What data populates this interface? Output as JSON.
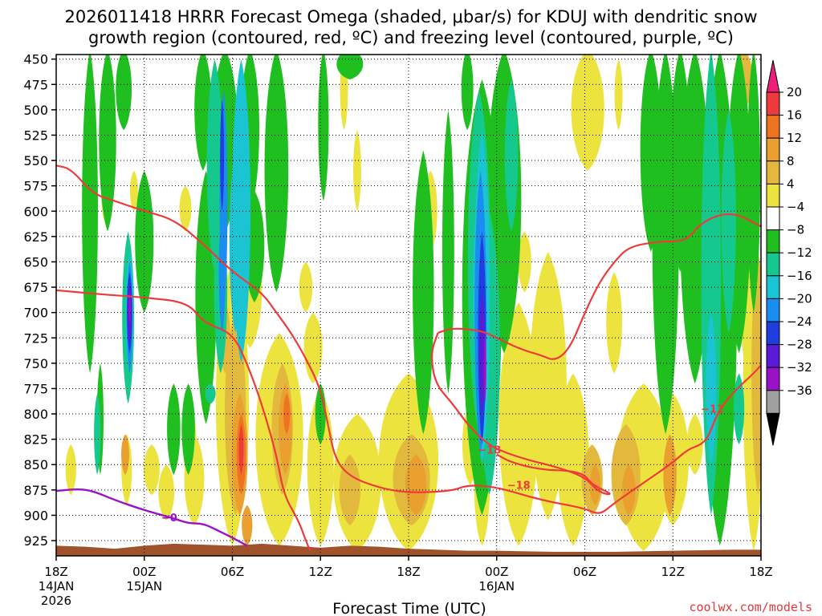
{
  "chart_data": {
    "type": "time-height contour",
    "title_line1": "2026011418 HRRR Forecast Omega (shaded, μbar/s) for KDUJ with dendritic snow",
    "title_line2": "growth region (contoured, red, ºC) and freezing level (contoured, purple, ºC)",
    "xlabel": "Forecast Time (UTC)",
    "credit": "coolwx.com/models",
    "y_levels": [
      "450",
      "475",
      "500",
      "525",
      "550",
      "575",
      "600",
      "625",
      "650",
      "675",
      "700",
      "725",
      "750",
      "775",
      "800",
      "825",
      "850",
      "875",
      "900",
      "925"
    ],
    "ylim_hpa": [
      450,
      940
    ],
    "xlim_hours": [
      0,
      48
    ],
    "x_ticks": [
      {
        "hour": 0,
        "label": "18Z",
        "sub1": "14JAN",
        "sub2": "2026"
      },
      {
        "hour": 6,
        "label": "00Z",
        "sub1": "15JAN",
        "sub2": ""
      },
      {
        "hour": 12,
        "label": "06Z",
        "sub1": "",
        "sub2": ""
      },
      {
        "hour": 18,
        "label": "12Z",
        "sub1": "",
        "sub2": ""
      },
      {
        "hour": 24,
        "label": "18Z",
        "sub1": "",
        "sub2": ""
      },
      {
        "hour": 30,
        "label": "00Z",
        "sub1": "16JAN",
        "sub2": ""
      },
      {
        "hour": 36,
        "label": "06Z",
        "sub1": "",
        "sub2": ""
      },
      {
        "hour": 42,
        "label": "12Z",
        "sub1": "",
        "sub2": ""
      },
      {
        "hour": 48,
        "label": "18Z",
        "sub1": "",
        "sub2": ""
      }
    ],
    "colorbar": {
      "labels": [
        "20",
        "16",
        "12",
        "8",
        "4",
        "−4",
        "−8",
        "−12",
        "−16",
        "−20",
        "−24",
        "−28",
        "−32",
        "−36"
      ],
      "colors": [
        "#ec1e7a",
        "#ee3a3a",
        "#ef7420",
        "#e9a02e",
        "#e3b93d",
        "#ede33e",
        "#ffffff",
        "#1fbf1f",
        "#15c88e",
        "#1bc4d2",
        "#1a8ef0",
        "#1f3ee0",
        "#5b1ad8",
        "#9a11c8",
        "#a0a0a0",
        "#000000"
      ]
    },
    "omega_features": [
      {
        "id": "ascent-04z",
        "hour": 5.0,
        "top_hpa": 640,
        "bottom_hpa": 790,
        "min_value": -28
      },
      {
        "id": "ascent-07z",
        "hour": 7.0,
        "top_hpa": 460,
        "bottom_hpa": 740,
        "min_value": -24
      },
      {
        "id": "ascent-10z",
        "hour": 10.0,
        "top_hpa": 450,
        "bottom_hpa": 700,
        "min_value": -16
      },
      {
        "id": "ascent-23z",
        "hour": 29.0,
        "top_hpa": 480,
        "bottom_hpa": 880,
        "min_value": -28
      },
      {
        "id": "ascent-15z",
        "hour": 45.0,
        "top_hpa": 450,
        "bottom_hpa": 910,
        "min_value": -12
      },
      {
        "id": "descent-06z",
        "hour": 12.5,
        "top_hpa": 720,
        "bottom_hpa": 920,
        "max_value": 16
      },
      {
        "id": "descent-09z",
        "hour": 15.5,
        "top_hpa": 740,
        "bottom_hpa": 880,
        "max_value": 12
      }
    ],
    "dgz_contours": [
      {
        "label": "-12",
        "points": [
          [
            0,
            555
          ],
          [
            1,
            558
          ],
          [
            2.5,
            583
          ],
          [
            4,
            590
          ],
          [
            6,
            600
          ],
          [
            8,
            608
          ],
          [
            10,
            632
          ],
          [
            12,
            660
          ],
          [
            14,
            680
          ],
          [
            15,
            700
          ],
          [
            16,
            720
          ],
          [
            17,
            745
          ],
          [
            18,
            775
          ],
          [
            18.5,
            810
          ],
          [
            19,
            845
          ],
          [
            20,
            862
          ],
          [
            22,
            873
          ],
          [
            24,
            878
          ],
          [
            27,
            876
          ],
          [
            28,
            870
          ],
          [
            30,
            872
          ],
          [
            33,
            885
          ],
          [
            36,
            893
          ],
          [
            37,
            900
          ],
          [
            38,
            888
          ],
          [
            40,
            868
          ],
          [
            42,
            848
          ],
          [
            43,
            835
          ],
          [
            44,
            830
          ],
          [
            44.5,
            820
          ],
          [
            45,
            800
          ],
          [
            46,
            780
          ],
          [
            47.5,
            760
          ],
          [
            48,
            752
          ]
        ]
      },
      {
        "label": "-18",
        "points": [
          [
            0,
            678
          ],
          [
            3,
            682
          ],
          [
            6,
            685
          ],
          [
            9,
            690
          ],
          [
            10,
            710
          ],
          [
            12,
            720
          ],
          [
            13,
            750
          ],
          [
            14,
            790
          ],
          [
            15,
            840
          ],
          [
            15.5,
            880
          ],
          [
            16.5,
            905
          ],
          [
            17,
            925
          ],
          [
            17.3,
            935
          ]
        ]
      },
      {
        "label": "-16",
        "points": [
          [
            26,
            720
          ],
          [
            27,
            715
          ],
          [
            29,
            718
          ],
          [
            30,
            725
          ],
          [
            31,
            732
          ],
          [
            32,
            738
          ],
          [
            33,
            742
          ],
          [
            34,
            748
          ],
          [
            35,
            735
          ],
          [
            36,
            700
          ],
          [
            37,
            670
          ],
          [
            38,
            650
          ],
          [
            39,
            635
          ],
          [
            41,
            630
          ],
          [
            42,
            630
          ],
          [
            43,
            628
          ],
          [
            44,
            610
          ],
          [
            46,
            600
          ],
          [
            48,
            615
          ]
        ]
      },
      {
        "label": "-18b",
        "points": [
          [
            26,
            720
          ],
          [
            25.5,
            740
          ],
          [
            25.8,
            770
          ],
          [
            27,
            790
          ],
          [
            28,
            810
          ],
          [
            29,
            825
          ],
          [
            30,
            835
          ],
          [
            32,
            845
          ],
          [
            34,
            852
          ],
          [
            36,
            862
          ],
          [
            37,
            878
          ],
          [
            38,
            880
          ],
          [
            36.5,
            870
          ],
          [
            36,
            860
          ],
          [
            35,
            856
          ],
          [
            33,
            855
          ],
          [
            31,
            848
          ],
          [
            30,
            840
          ]
        ]
      }
    ],
    "freezing_contour": {
      "label": "0",
      "points": [
        [
          0,
          876
        ],
        [
          1.5,
          874
        ],
        [
          2.5,
          876
        ],
        [
          4,
          885
        ],
        [
          6,
          895
        ],
        [
          8,
          903
        ],
        [
          9,
          908
        ],
        [
          10,
          908
        ],
        [
          11,
          915
        ],
        [
          12,
          922
        ],
        [
          13,
          930
        ]
      ]
    }
  }
}
